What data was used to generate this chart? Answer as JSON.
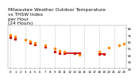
{
  "title": "Milwaukee Weather Outdoor Temperature\nvs THSW Index\nper Hour\n(24 Hours)",
  "temp_color": "#ff8800",
  "thsw_color": "#cc0000",
  "black_color": "#000000",
  "background_color": "#ffffff",
  "grid_color": "#aaaaaa",
  "hours": [
    0,
    1,
    2,
    3,
    4,
    5,
    6,
    7,
    8,
    9,
    10,
    11,
    12,
    13,
    14,
    15,
    16,
    17,
    18,
    19,
    20,
    21,
    22,
    23
  ],
  "outdoor_temp": [
    75,
    73,
    null,
    68,
    66,
    64,
    null,
    60,
    null,
    55,
    52,
    50,
    null,
    null,
    46,
    null,
    null,
    null,
    50,
    null,
    56,
    null,
    60,
    62
  ],
  "thsw_index": [
    72,
    70,
    null,
    null,
    63,
    61,
    null,
    57,
    null,
    50,
    48,
    48,
    null,
    48,
    48,
    null,
    null,
    null,
    47,
    47,
    null,
    null,
    null,
    null
  ],
  "thsw_hlines": [
    [
      11,
      14,
      48
    ],
    [
      18,
      19,
      47
    ]
  ],
  "ylim": [
    25,
    90
  ],
  "ytick_vals": [
    25,
    35,
    45,
    55,
    65,
    75,
    85
  ],
  "ytick_labels": [
    "25",
    "35",
    "45",
    "55",
    "65",
    "75",
    "85"
  ],
  "xtick_hours": [
    0,
    1,
    2,
    3,
    4,
    5,
    6,
    7,
    8,
    9,
    10,
    11,
    12,
    13,
    14,
    15,
    16,
    17,
    18,
    19,
    20,
    21,
    22,
    23
  ],
  "vgrid_hours": [
    0,
    3,
    6,
    9,
    12,
    15,
    18,
    21
  ],
  "title_fontsize": 4.2,
  "tick_fontsize": 2.8
}
